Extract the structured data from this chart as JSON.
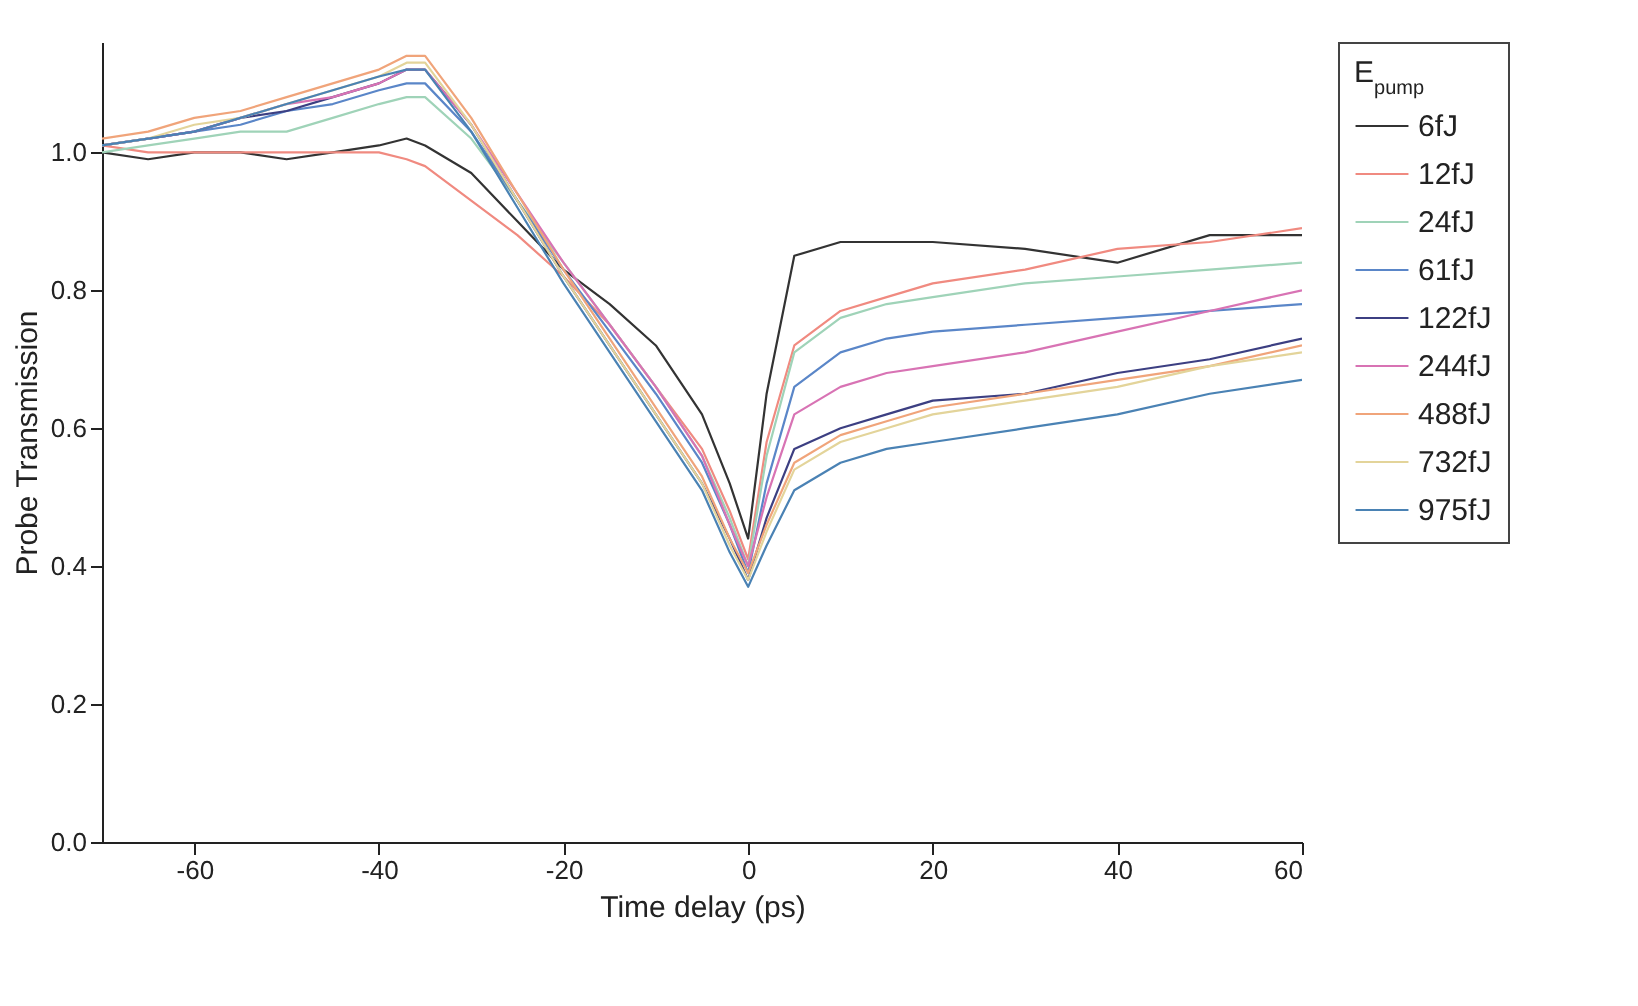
{
  "chart_data": {
    "type": "line",
    "xlabel": "Time delay (ps)",
    "ylabel": "Probe Transmission",
    "legend_title": "E$_{pump}$",
    "legend": "right",
    "line_style": "solid",
    "marker": "none",
    "x": [
      -70,
      -65,
      -60,
      -55,
      -50,
      -45,
      -40,
      -37,
      -35,
      -30,
      -25,
      -20,
      -15,
      -10,
      -5,
      -2,
      0,
      2,
      5,
      10,
      15,
      20,
      30,
      40,
      50,
      60
    ],
    "xlim": [
      -70,
      60
    ],
    "xticks": [
      -60,
      -40,
      -20,
      0,
      20,
      40,
      60
    ],
    "ylim": [
      0,
      1.16
    ],
    "yticks": [
      {
        "value": 0,
        "label": "0.0"
      },
      {
        "value": 0.2,
        "label": "0.2"
      },
      {
        "value": 0.4,
        "label": "0.4"
      },
      {
        "value": 0.6,
        "label": "0.6"
      },
      {
        "value": 0.8,
        "label": "0.8"
      },
      {
        "value": 1,
        "label": "1.0"
      }
    ],
    "series": [
      {
        "name": "6fJ",
        "color": "#333333",
        "values": [
          1.0,
          0.99,
          1.0,
          1.0,
          0.99,
          1.0,
          1.01,
          1.02,
          1.01,
          0.97,
          0.9,
          0.83,
          0.78,
          0.72,
          0.62,
          0.52,
          0.44,
          0.65,
          0.85,
          0.87,
          0.87,
          0.87,
          0.86,
          0.84,
          0.88,
          0.88
        ]
      },
      {
        "name": "12fJ",
        "color": "#f08a80",
        "values": [
          1.01,
          1.0,
          1.0,
          1.0,
          1.0,
          1.0,
          1.0,
          0.99,
          0.98,
          0.93,
          0.88,
          0.82,
          0.75,
          0.66,
          0.57,
          0.48,
          0.41,
          0.58,
          0.72,
          0.77,
          0.79,
          0.81,
          0.83,
          0.86,
          0.87,
          0.89
        ]
      },
      {
        "name": "24fJ",
        "color": "#9fd3b8",
        "values": [
          1.0,
          1.01,
          1.02,
          1.03,
          1.03,
          1.05,
          1.07,
          1.08,
          1.08,
          1.02,
          0.93,
          0.84,
          0.75,
          0.66,
          0.56,
          0.47,
          0.4,
          0.56,
          0.71,
          0.76,
          0.78,
          0.79,
          0.81,
          0.82,
          0.83,
          0.84
        ]
      },
      {
        "name": "61fJ",
        "color": "#5a86c8",
        "values": [
          1.01,
          1.02,
          1.03,
          1.04,
          1.06,
          1.07,
          1.09,
          1.1,
          1.1,
          1.03,
          0.93,
          0.83,
          0.74,
          0.65,
          0.55,
          0.46,
          0.39,
          0.52,
          0.66,
          0.71,
          0.73,
          0.74,
          0.75,
          0.76,
          0.77,
          0.78
        ]
      },
      {
        "name": "122fJ",
        "color": "#3c3f82",
        "values": [
          1.01,
          1.02,
          1.03,
          1.05,
          1.06,
          1.08,
          1.1,
          1.12,
          1.12,
          1.04,
          0.93,
          0.82,
          0.72,
          0.62,
          0.52,
          0.44,
          0.38,
          0.47,
          0.57,
          0.6,
          0.62,
          0.64,
          0.65,
          0.68,
          0.7,
          0.73
        ]
      },
      {
        "name": "244fJ",
        "color": "#d873b4",
        "values": [
          1.01,
          1.02,
          1.03,
          1.05,
          1.07,
          1.08,
          1.1,
          1.12,
          1.12,
          1.04,
          0.94,
          0.84,
          0.75,
          0.66,
          0.56,
          0.46,
          0.4,
          0.5,
          0.62,
          0.66,
          0.68,
          0.69,
          0.71,
          0.74,
          0.77,
          0.8
        ]
      },
      {
        "name": "488fJ",
        "color": "#f0a47a",
        "values": [
          1.02,
          1.03,
          1.05,
          1.06,
          1.08,
          1.1,
          1.12,
          1.14,
          1.14,
          1.05,
          0.94,
          0.83,
          0.73,
          0.63,
          0.53,
          0.44,
          0.39,
          0.46,
          0.55,
          0.59,
          0.61,
          0.63,
          0.65,
          0.67,
          0.69,
          0.72
        ]
      },
      {
        "name": "732fJ",
        "color": "#e3d49a",
        "values": [
          1.01,
          1.02,
          1.04,
          1.05,
          1.07,
          1.09,
          1.11,
          1.13,
          1.13,
          1.04,
          0.93,
          0.82,
          0.72,
          0.62,
          0.52,
          0.43,
          0.38,
          0.45,
          0.54,
          0.58,
          0.6,
          0.62,
          0.64,
          0.66,
          0.69,
          0.71
        ]
      },
      {
        "name": "975fJ",
        "color": "#4a82b4",
        "values": [
          1.01,
          1.02,
          1.03,
          1.05,
          1.07,
          1.09,
          1.11,
          1.12,
          1.12,
          1.03,
          0.92,
          0.81,
          0.71,
          0.61,
          0.51,
          0.42,
          0.37,
          0.43,
          0.51,
          0.55,
          0.57,
          0.58,
          0.6,
          0.62,
          0.65,
          0.67
        ]
      }
    ]
  }
}
